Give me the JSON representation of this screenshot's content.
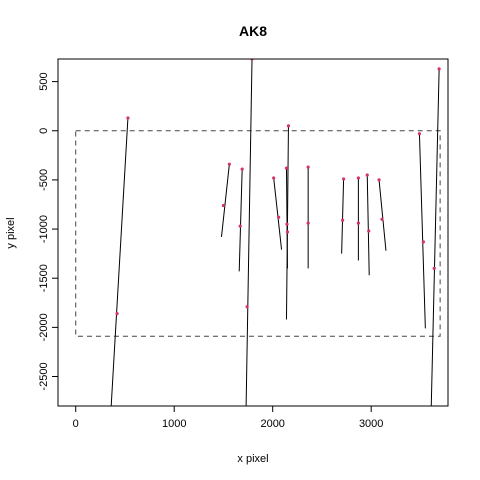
{
  "chart_data": {
    "type": "line",
    "title": "AK8",
    "xlabel": "x pixel",
    "ylabel": "y pixel",
    "xlim": [
      -180,
      3780
    ],
    "ylim": [
      -2800,
      730
    ],
    "xticks": [
      0,
      1000,
      2000,
      3000
    ],
    "yticks": [
      -2500,
      -2000,
      -1500,
      -1000,
      -500,
      0,
      500
    ],
    "xtick_labels": [
      "0",
      "1000",
      "2000",
      "3000"
    ],
    "ytick_labels": [
      "-2500",
      "-2000",
      "-1500",
      "-1000",
      "-500",
      "0",
      "500"
    ],
    "boundary_rect": {
      "x": [
        0,
        3700
      ],
      "y": [
        -2090,
        0
      ],
      "style": "dashed"
    },
    "colors": {
      "line": "#000000",
      "point": "#d6336c",
      "frame": "#000000"
    },
    "segments": [
      {
        "x": [
          360,
          530
        ],
        "y": [
          -2800,
          130
        ]
      },
      {
        "x": [
          1480,
          1560
        ],
        "y": [
          -1080,
          -340
        ]
      },
      {
        "x": [
          1660,
          1690
        ],
        "y": [
          -1430,
          -390
        ]
      },
      {
        "x": [
          1730,
          1790
        ],
        "y": [
          -2800,
          730
        ]
      },
      {
        "x": [
          2010,
          2090
        ],
        "y": [
          -480,
          -1210
        ]
      },
      {
        "x": [
          2140,
          2160
        ],
        "y": [
          -1920,
          50
        ]
      },
      {
        "x": [
          2140,
          2150
        ],
        "y": [
          -380,
          -1400
        ]
      },
      {
        "x": [
          2360,
          2360
        ],
        "y": [
          -370,
          -1400
        ]
      },
      {
        "x": [
          2700,
          2720
        ],
        "y": [
          -1250,
          -490
        ]
      },
      {
        "x": [
          2870,
          2870
        ],
        "y": [
          -480,
          -1320
        ]
      },
      {
        "x": [
          2960,
          2980
        ],
        "y": [
          -450,
          -1470
        ]
      },
      {
        "x": [
          3080,
          3150
        ],
        "y": [
          -500,
          -1220
        ]
      },
      {
        "x": [
          3490,
          3550
        ],
        "y": [
          -30,
          -2010
        ]
      },
      {
        "x": [
          3610,
          3690
        ],
        "y": [
          -2800,
          630
        ]
      }
    ],
    "points": [
      {
        "x": 420,
        "y": -1860
      },
      {
        "x": 530,
        "y": 130
      },
      {
        "x": 1500,
        "y": -760
      },
      {
        "x": 1560,
        "y": -340
      },
      {
        "x": 1670,
        "y": -970
      },
      {
        "x": 1690,
        "y": -390
      },
      {
        "x": 1740,
        "y": -1790
      },
      {
        "x": 1790,
        "y": 730
      },
      {
        "x": 2010,
        "y": -480
      },
      {
        "x": 2060,
        "y": -880
      },
      {
        "x": 2140,
        "y": -380
      },
      {
        "x": 2145,
        "y": -950
      },
      {
        "x": 2150,
        "y": -1030
      },
      {
        "x": 2160,
        "y": 50
      },
      {
        "x": 2360,
        "y": -370
      },
      {
        "x": 2360,
        "y": -940
      },
      {
        "x": 2720,
        "y": -490
      },
      {
        "x": 2710,
        "y": -910
      },
      {
        "x": 2870,
        "y": -480
      },
      {
        "x": 2870,
        "y": -940
      },
      {
        "x": 2960,
        "y": -450
      },
      {
        "x": 2975,
        "y": -1020
      },
      {
        "x": 3080,
        "y": -500
      },
      {
        "x": 3110,
        "y": -900
      },
      {
        "x": 3490,
        "y": -30
      },
      {
        "x": 3530,
        "y": -1130
      },
      {
        "x": 3640,
        "y": -1400
      },
      {
        "x": 3690,
        "y": 630
      }
    ]
  }
}
